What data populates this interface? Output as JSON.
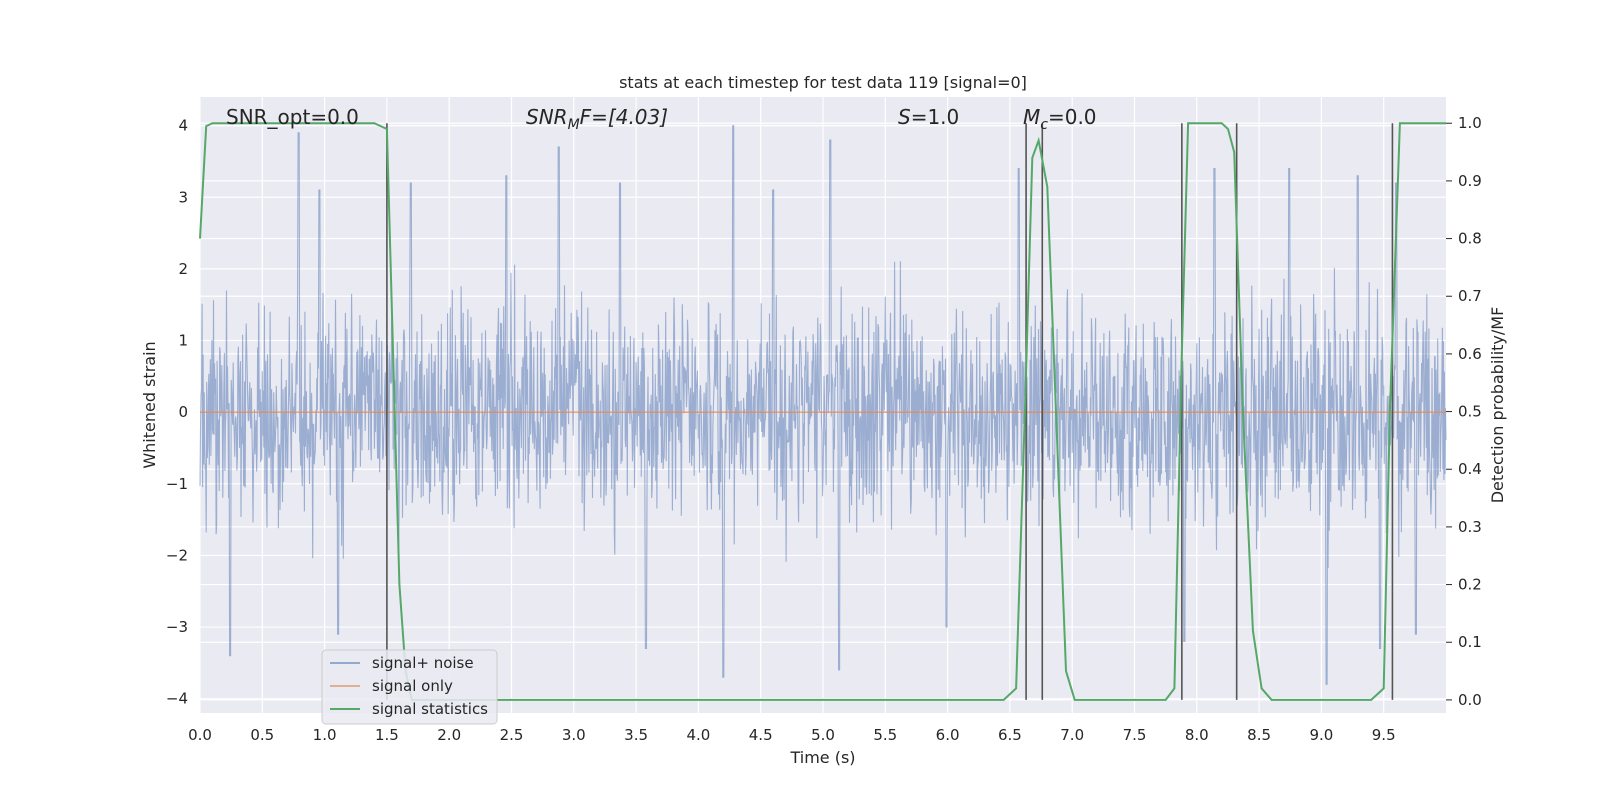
{
  "chart_data": {
    "type": "line",
    "title": "stats at each timestep for test data 119 [signal=0]",
    "xlabel": "Time (s)",
    "ylabel": "Whitened strain",
    "y2label": "Detection probability/MF",
    "xlim": [
      0,
      10
    ],
    "ylim": [
      -4.2,
      4.4
    ],
    "y2lim": [
      -0.0227,
      1.0455
    ],
    "x_ticks": [
      "0.0",
      "0.5",
      "1.0",
      "1.5",
      "2.0",
      "2.5",
      "3.0",
      "3.5",
      "4.0",
      "4.5",
      "5.0",
      "5.5",
      "6.0",
      "6.5",
      "7.0",
      "7.5",
      "8.0",
      "8.5",
      "9.0",
      "9.5"
    ],
    "y_ticks": [
      "4",
      "3",
      "2",
      "1",
      "0",
      "−1",
      "−2",
      "−3",
      "−4"
    ],
    "y2_ticks": [
      "1.0",
      "0.9",
      "0.8",
      "0.7",
      "0.6",
      "0.5",
      "0.4",
      "0.3",
      "0.2",
      "0.1",
      "0.0"
    ],
    "grid": true,
    "legend_position": "lower-left",
    "annotations": {
      "snr_opt": "SNR_opt=0.0",
      "snr_mf_main": "SNR",
      "snr_mf_sub": "M",
      "snr_mf_rest": "F=[4.03]",
      "s_main": "S",
      "s_rest": "=1.0",
      "mc_main": "M",
      "mc_sub": "c",
      "mc_rest": "=0.0"
    },
    "series": [
      {
        "name": "signal+ noise",
        "color": "#4c72b0",
        "description_of_shape": "dense whitened noise, mostly within ±2.5, peaks ~±4",
        "envelope_peaks": [
          [
            0.79,
            3.9
          ],
          [
            0.96,
            3.1
          ],
          [
            1.69,
            3.2
          ],
          [
            2.46,
            3.3
          ],
          [
            2.88,
            3.7
          ],
          [
            3.37,
            3.2
          ],
          [
            4.28,
            4.0
          ],
          [
            4.6,
            3.1
          ],
          [
            5.06,
            3.8
          ],
          [
            6.57,
            3.4
          ],
          [
            8.14,
            3.4
          ],
          [
            8.74,
            3.4
          ],
          [
            9.29,
            3.3
          ],
          [
            9.6,
            3.2
          ],
          [
            0.24,
            -3.4
          ],
          [
            1.11,
            -3.1
          ],
          [
            3.58,
            -3.3
          ],
          [
            4.2,
            -3.7
          ],
          [
            5.13,
            -3.6
          ],
          [
            5.99,
            -3.0
          ],
          [
            7.9,
            -3.2
          ],
          [
            9.04,
            -3.8
          ],
          [
            9.47,
            -3.3
          ],
          [
            9.76,
            -3.1
          ]
        ]
      },
      {
        "name": "signal only",
        "color": "#dd8452",
        "x": [
          0,
          10
        ],
        "y": [
          0,
          0
        ]
      },
      {
        "name": "signal statistics",
        "color": "#55a868",
        "axis": "right",
        "x": [
          0.0,
          0.05,
          0.1,
          0.2,
          0.5,
          1.0,
          1.4,
          1.45,
          1.5,
          1.55,
          1.6,
          1.65,
          1.7,
          2.0,
          3.0,
          4.0,
          5.0,
          6.0,
          6.45,
          6.55,
          6.62,
          6.68,
          6.73,
          6.8,
          6.87,
          6.95,
          7.02,
          7.2,
          7.5,
          7.75,
          7.82,
          7.88,
          7.93,
          8.0,
          8.2,
          8.25,
          8.3,
          8.37,
          8.45,
          8.52,
          8.6,
          8.7,
          9.0,
          9.4,
          9.5,
          9.55,
          9.63,
          9.7,
          10.0
        ],
        "y": [
          0.8,
          0.995,
          1.0,
          1.0,
          1.0,
          1.0,
          1.0,
          0.995,
          0.99,
          0.6,
          0.2,
          0.05,
          0.0,
          0.0,
          0.0,
          0.0,
          0.0,
          0.0,
          0.0,
          0.02,
          0.5,
          0.94,
          0.97,
          0.89,
          0.5,
          0.05,
          0.0,
          0.0,
          0.0,
          0.0,
          0.02,
          0.6,
          1.0,
          1.0,
          1.0,
          0.99,
          0.95,
          0.5,
          0.12,
          0.02,
          0.0,
          0.0,
          0.0,
          0.0,
          0.02,
          0.5,
          1.0,
          1.0,
          1.0
        ]
      }
    ],
    "vlines_x": [
      1.5,
      6.63,
      6.76,
      7.88,
      8.32,
      9.57
    ],
    "vline_color": "#555555"
  }
}
